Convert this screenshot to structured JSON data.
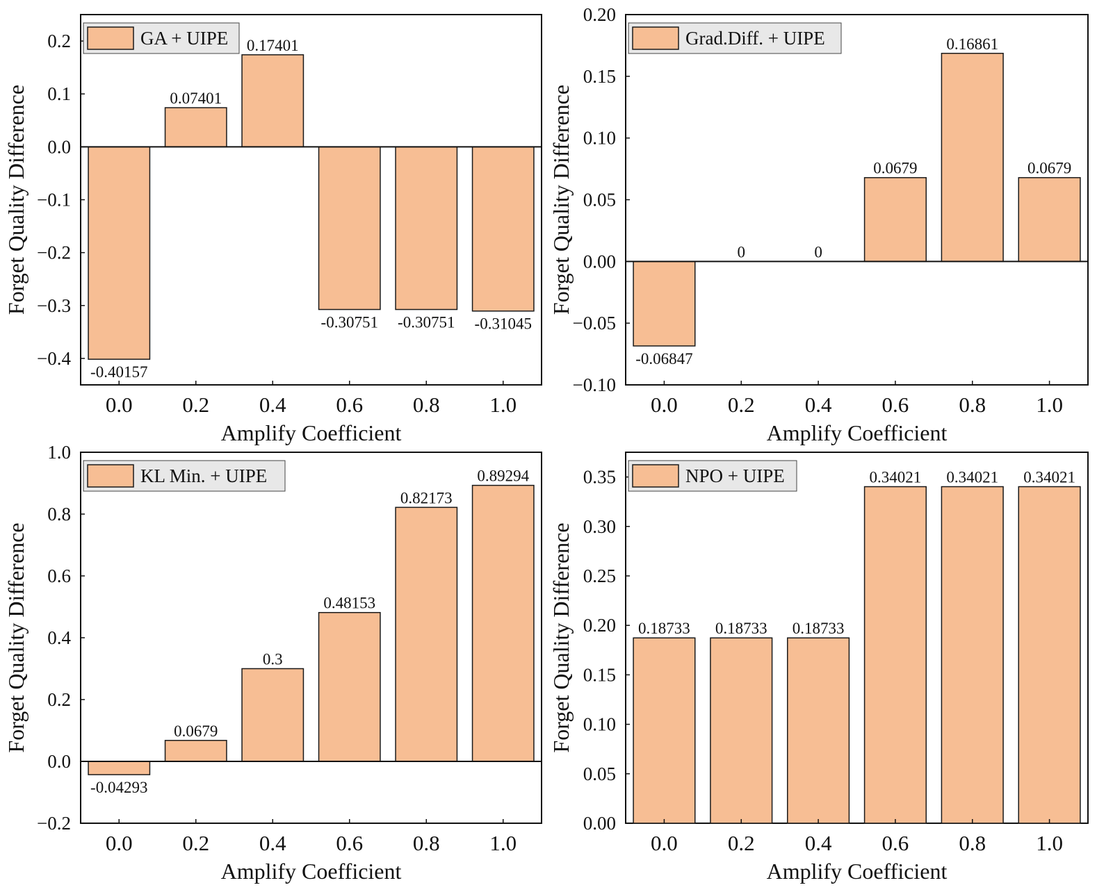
{
  "figure": {
    "colors": {
      "bar_fill": "#f7be94",
      "bar_edge": "#1a1a1a",
      "legend_bg": "#e8e8e8"
    }
  },
  "chart_data": [
    {
      "type": "bar",
      "categories": [
        "0.0",
        "0.2",
        "0.4",
        "0.6",
        "0.8",
        "1.0"
      ],
      "series": [
        {
          "name": "GA + UIPE",
          "values": [
            -0.40157,
            0.07401,
            0.17401,
            -0.30751,
            -0.30751,
            -0.31045
          ]
        }
      ],
      "value_labels": [
        "-0.40157",
        "0.07401",
        "0.17401",
        "-0.30751",
        "-0.30751",
        "-0.31045"
      ],
      "xlabel": "Amplify Coefficient",
      "ylabel": "Forget Quality Difference",
      "ylim": [
        -0.45,
        0.25
      ],
      "yticks": [
        0.2,
        0.1,
        0.0,
        -0.1,
        -0.2,
        -0.3,
        -0.4
      ],
      "ytick_labels": [
        "0.2",
        "0.1",
        "0.0",
        "−0.1",
        "−0.2",
        "−0.3",
        "−0.4"
      ],
      "legend_placement": "upper-left",
      "grid": false
    },
    {
      "type": "bar",
      "categories": [
        "0.0",
        "0.2",
        "0.4",
        "0.6",
        "0.8",
        "1.0"
      ],
      "series": [
        {
          "name": "Grad.Diff. + UIPE",
          "values": [
            -0.06847,
            0,
            0,
            0.0679,
            0.16861,
            0.0679
          ]
        }
      ],
      "value_labels": [
        "-0.06847",
        "0",
        "0",
        "0.0679",
        "0.16861",
        "0.0679"
      ],
      "xlabel": "Amplify Coefficient",
      "ylabel": "Forget Quality Difference",
      "ylim": [
        -0.1,
        0.2
      ],
      "yticks": [
        0.2,
        0.15,
        0.1,
        0.05,
        0.0,
        -0.05,
        -0.1
      ],
      "ytick_labels": [
        "0.20",
        "0.15",
        "0.10",
        "0.05",
        "0.00",
        "−0.05",
        "−0.10"
      ],
      "legend_placement": "upper-left",
      "grid": false
    },
    {
      "type": "bar",
      "categories": [
        "0.0",
        "0.2",
        "0.4",
        "0.6",
        "0.8",
        "1.0"
      ],
      "series": [
        {
          "name": "KL Min. + UIPE",
          "values": [
            -0.04293,
            0.0679,
            0.3,
            0.48153,
            0.82173,
            0.89294
          ]
        }
      ],
      "value_labels": [
        "-0.04293",
        "0.0679",
        "0.3",
        "0.48153",
        "0.82173",
        "0.89294"
      ],
      "xlabel": "Amplify Coefficient",
      "ylabel": "Forget Quality Difference",
      "ylim": [
        -0.2,
        1.0
      ],
      "yticks": [
        1.0,
        0.8,
        0.6,
        0.4,
        0.2,
        0.0,
        -0.2
      ],
      "ytick_labels": [
        "1.0",
        "0.8",
        "0.6",
        "0.4",
        "0.2",
        "0.0",
        "−0.2"
      ],
      "legend_placement": "upper-left",
      "grid": false
    },
    {
      "type": "bar",
      "categories": [
        "0.0",
        "0.2",
        "0.4",
        "0.6",
        "0.8",
        "1.0"
      ],
      "series": [
        {
          "name": "NPO + UIPE",
          "values": [
            0.18733,
            0.18733,
            0.18733,
            0.34021,
            0.34021,
            0.34021
          ]
        }
      ],
      "value_labels": [
        "0.18733",
        "0.18733",
        "0.18733",
        "0.34021",
        "0.34021",
        "0.34021"
      ],
      "xlabel": "Amplify Coefficient",
      "ylabel": "Forget Quality Difference",
      "ylim": [
        0.0,
        0.375
      ],
      "yticks": [
        0.35,
        0.3,
        0.25,
        0.2,
        0.15,
        0.1,
        0.05,
        0.0
      ],
      "ytick_labels": [
        "0.35",
        "0.30",
        "0.25",
        "0.20",
        "0.15",
        "0.10",
        "0.05",
        "0.00"
      ],
      "legend_placement": "upper-left",
      "grid": false
    }
  ]
}
